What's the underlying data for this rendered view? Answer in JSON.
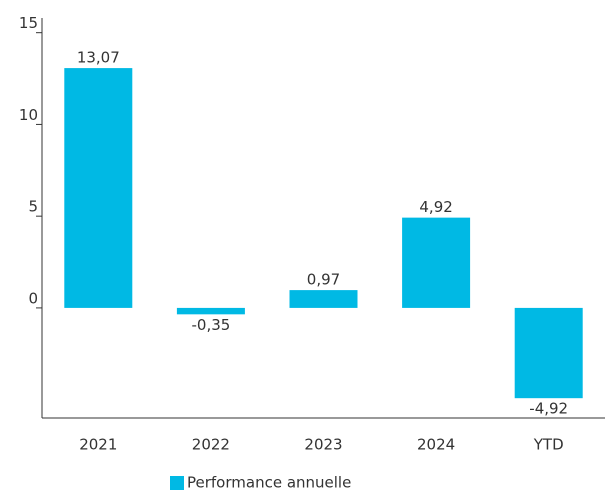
{
  "chart_data": {
    "type": "bar",
    "categories": [
      "2021",
      "2022",
      "2023",
      "2024",
      "YTD"
    ],
    "series": [
      {
        "name": "Performance annuelle",
        "color": "#00b9e4",
        "values": [
          13.07,
          -0.35,
          0.97,
          4.92,
          -4.92
        ],
        "value_labels": [
          "13,07",
          "-0,35",
          "0,97",
          "4,92",
          "-4,92"
        ]
      }
    ],
    "ylim": [
      -6,
      15.8
    ],
    "yticks": [
      0,
      5,
      10,
      15
    ],
    "legend": "bottom"
  }
}
